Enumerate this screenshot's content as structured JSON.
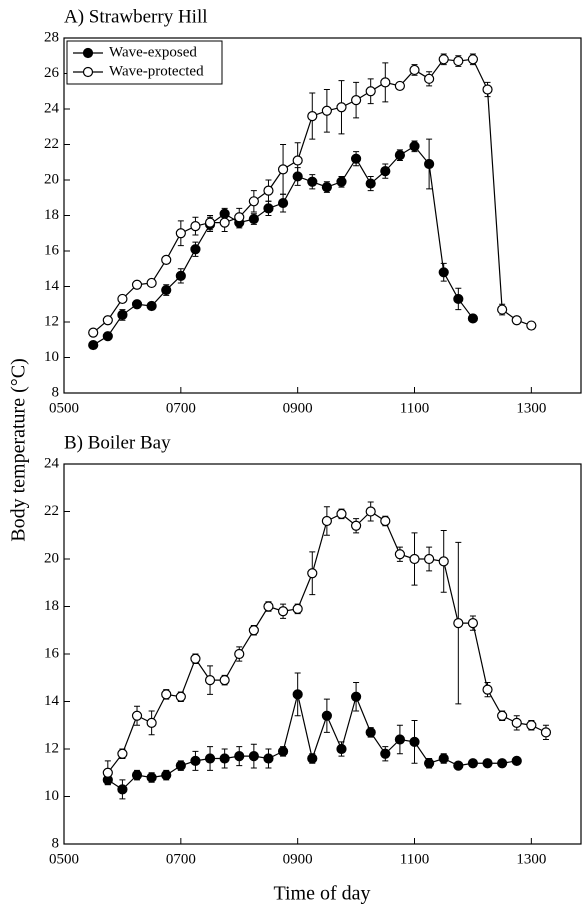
{
  "chart_data": [
    {
      "type": "line",
      "title": "A) Strawberry Hill",
      "ylabel": "Body temperature (°C)",
      "legend": "upper left",
      "xlim": [
        5,
        13.85
      ],
      "xticks": [
        {
          "value": 5,
          "label": "0500"
        },
        {
          "value": 7,
          "label": "0700"
        },
        {
          "value": 9,
          "label": "0900"
        },
        {
          "value": 11,
          "label": "1100"
        },
        {
          "value": 13,
          "label": "1300"
        }
      ],
      "ylim": [
        8,
        28
      ],
      "yticks": [
        8,
        10,
        12,
        14,
        16,
        18,
        20,
        22,
        24,
        26,
        28
      ],
      "series": [
        {
          "name": "Wave-exposed",
          "color": "#000000",
          "x": [
            5.5,
            5.75,
            6,
            6.25,
            6.5,
            6.75,
            7,
            7.25,
            7.5,
            7.75,
            8,
            8.25,
            8.5,
            8.75,
            9,
            9.25,
            9.5,
            9.75,
            10,
            10.25,
            10.5,
            10.75,
            11,
            11.25,
            11.5,
            11.75,
            12
          ],
          "values": [
            10.7,
            11.2,
            12.4,
            13.0,
            12.9,
            13.8,
            14.6,
            16.1,
            17.5,
            18.1,
            17.6,
            17.8,
            18.4,
            18.7,
            20.2,
            19.9,
            19.6,
            19.9,
            21.2,
            19.8,
            20.5,
            21.4,
            21.9,
            20.9,
            14.8,
            13.3,
            12.2
          ],
          "errors": [
            0.2,
            0.2,
            0.3,
            0.2,
            0.2,
            0.3,
            0.4,
            0.4,
            0.4,
            0.3,
            0.3,
            0.3,
            0.4,
            0.5,
            0.5,
            0.4,
            0.3,
            0.3,
            0.4,
            0.4,
            0.4,
            0.3,
            0.3,
            1.4,
            0.5,
            0.6,
            0.2
          ]
        },
        {
          "name": "Wave-protected",
          "color": "#ffffff",
          "x": [
            5.5,
            5.75,
            6,
            6.25,
            6.5,
            6.75,
            7,
            7.25,
            7.5,
            7.75,
            8,
            8.25,
            8.5,
            8.75,
            9,
            9.25,
            9.5,
            9.75,
            10,
            10.25,
            10.5,
            10.75,
            11,
            11.25,
            11.5,
            11.75,
            12,
            12.25,
            12.5,
            12.75,
            13
          ],
          "values": [
            11.4,
            12.1,
            13.3,
            14.1,
            14.2,
            15.5,
            17.0,
            17.4,
            17.6,
            17.6,
            17.9,
            18.8,
            19.4,
            20.6,
            21.1,
            23.6,
            23.9,
            24.1,
            24.5,
            25.0,
            25.5,
            25.3,
            26.2,
            25.7,
            26.8,
            26.7,
            26.8,
            25.1,
            12.7,
            12.1,
            11.8
          ],
          "errors": [
            0.2,
            0.2,
            0.2,
            0.2,
            0.2,
            0.2,
            0.7,
            0.5,
            0.4,
            0.5,
            0.5,
            0.6,
            0.6,
            1.4,
            1.0,
            1.3,
            1.2,
            1.5,
            1.0,
            0.7,
            1.1,
            0.2,
            0.3,
            0.4,
            0.3,
            0.3,
            0.3,
            0.4,
            0.3,
            0.2,
            0.2
          ]
        }
      ]
    },
    {
      "type": "line",
      "title": "B) Boiler Bay",
      "xlabel": "Time of day",
      "xlim": [
        5,
        13.85
      ],
      "xticks": [
        {
          "value": 5,
          "label": "0500"
        },
        {
          "value": 7,
          "label": "0700"
        },
        {
          "value": 9,
          "label": "0900"
        },
        {
          "value": 11,
          "label": "1100"
        },
        {
          "value": 13,
          "label": "1300"
        }
      ],
      "ylim": [
        8,
        24
      ],
      "yticks": [
        8,
        10,
        12,
        14,
        16,
        18,
        20,
        22,
        24
      ],
      "series": [
        {
          "color": "#000000",
          "x": [
            5.75,
            6,
            6.25,
            6.5,
            6.75,
            7,
            7.25,
            7.5,
            7.75,
            8,
            8.25,
            8.5,
            8.75,
            9,
            9.25,
            9.5,
            9.75,
            10,
            10.25,
            10.5,
            10.75,
            11,
            11.25,
            11.5,
            11.75,
            12,
            12.25,
            12.5,
            12.75
          ],
          "values": [
            10.7,
            10.3,
            10.9,
            10.8,
            10.9,
            11.3,
            11.5,
            11.6,
            11.6,
            11.7,
            11.7,
            11.6,
            11.9,
            14.3,
            11.6,
            13.4,
            12.0,
            14.2,
            12.7,
            11.8,
            12.4,
            12.3,
            11.4,
            11.6,
            11.3,
            11.4,
            11.4,
            11.4,
            11.5
          ],
          "errors": [
            0.2,
            0.4,
            0.2,
            0.2,
            0.2,
            0.2,
            0.4,
            0.5,
            0.4,
            0.4,
            0.5,
            0.4,
            0.2,
            0.9,
            0.2,
            0.7,
            0.3,
            0.6,
            0.2,
            0.3,
            0.6,
            0.9,
            0.2,
            0.2,
            0.1,
            0.1,
            0.1,
            0.1,
            0.1
          ]
        },
        {
          "color": "#ffffff",
          "x": [
            5.75,
            6,
            6.25,
            6.5,
            6.75,
            7,
            7.25,
            7.5,
            7.75,
            8,
            8.25,
            8.5,
            8.75,
            9,
            9.25,
            9.5,
            9.75,
            10,
            10.25,
            10.5,
            10.75,
            11,
            11.25,
            11.5,
            11.75,
            12,
            12.25,
            12.5,
            12.75,
            13,
            13.25
          ],
          "values": [
            11.0,
            11.8,
            13.4,
            13.1,
            14.3,
            14.2,
            15.8,
            14.9,
            14.9,
            16.0,
            17.0,
            18.0,
            17.8,
            17.9,
            19.4,
            21.6,
            21.9,
            21.4,
            22.0,
            21.6,
            20.2,
            20.0,
            20.0,
            19.9,
            17.3,
            17.3,
            14.5,
            13.4,
            13.1,
            13.0,
            12.7
          ],
          "errors": [
            0.5,
            0.2,
            0.4,
            0.5,
            0.2,
            0.2,
            0.2,
            0.6,
            0.2,
            0.3,
            0.2,
            0.2,
            0.3,
            0.2,
            0.9,
            0.6,
            0.2,
            0.3,
            0.4,
            0.2,
            0.3,
            1.1,
            0.5,
            1.3,
            3.4,
            0.3,
            0.3,
            0.2,
            0.3,
            0.2,
            0.3
          ]
        }
      ]
    }
  ]
}
